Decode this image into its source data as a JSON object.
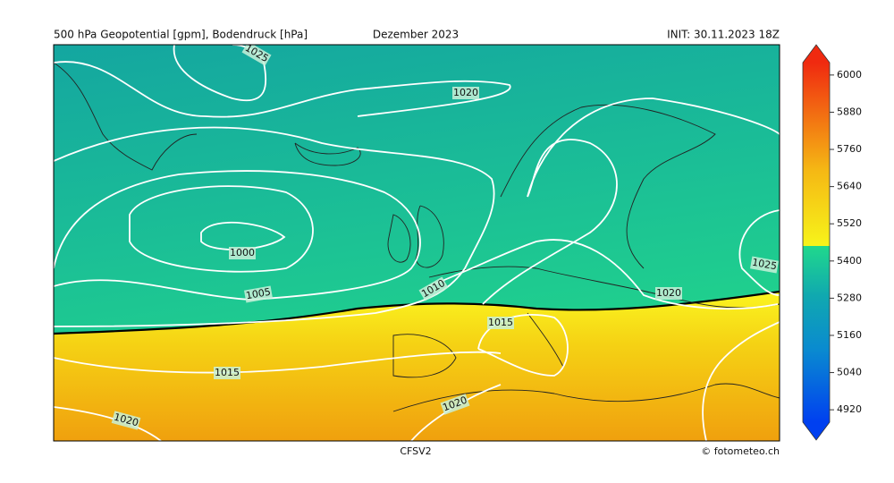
{
  "header": {
    "left": "500 hPa Geopotential [gpm], Bodendruck [hPa]",
    "center": "Dezember 2023",
    "right": "INIT: 30.11.2023 18Z"
  },
  "footer": {
    "model": "CFSV2",
    "credit": "© fotometeo.ch"
  },
  "colorbar": {
    "lim": [
      4880,
      6040
    ],
    "ticks": [
      4920,
      5040,
      5160,
      5280,
      5400,
      5520,
      5640,
      5760,
      5880,
      6000
    ]
  },
  "isobar_labels": [
    1025,
    1020,
    1000,
    1005,
    1010,
    1015,
    1020,
    1025,
    1015,
    1020,
    1020
  ]
}
